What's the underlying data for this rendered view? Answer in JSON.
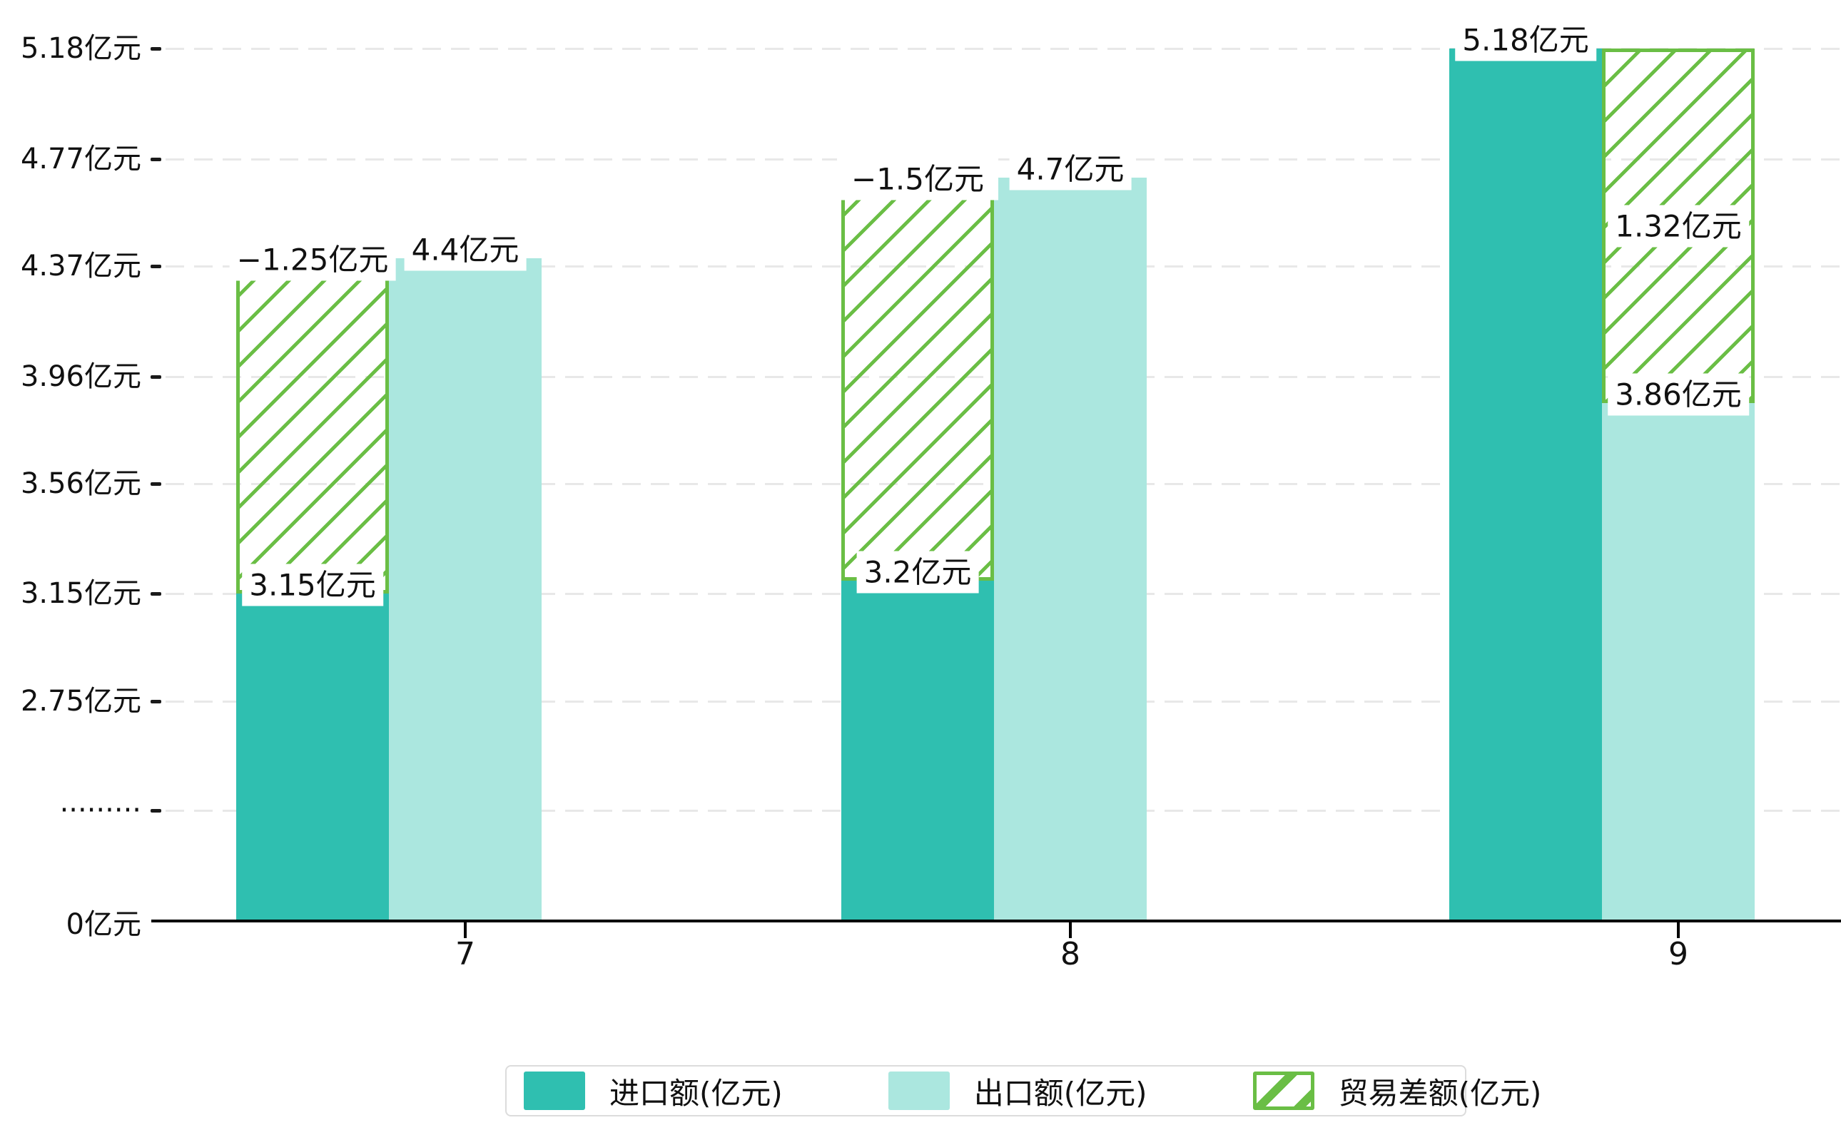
{
  "chart_data": {
    "type": "bar",
    "title": "",
    "unit": "亿元",
    "categories": [
      "7",
      "8",
      "9"
    ],
    "series": [
      {
        "name": "进口额(亿元)",
        "style": "solid",
        "color": "#2fbfb0",
        "values": [
          3.15,
          3.2,
          5.18
        ],
        "data_labels": [
          "3.15亿元",
          "3.2亿元",
          "5.18亿元"
        ]
      },
      {
        "name": "出口额(亿元)",
        "style": "solid",
        "color": "#abe7df",
        "values": [
          4.4,
          4.7,
          3.86
        ],
        "data_labels": [
          "4.4亿元",
          "4.7亿元",
          "3.86亿元"
        ]
      },
      {
        "name": "贸易差额(亿元)",
        "style": "hatched",
        "color": "#6abe45",
        "values": [
          -1.25,
          -1.5,
          1.32
        ],
        "data_labels": [
          "−1.25亿元",
          "−1.5亿元",
          "1.32亿元"
        ]
      }
    ],
    "y_axis": {
      "tick_labels": [
        "5.18亿元",
        "4.77亿元",
        "4.37亿元",
        "3.96亿元",
        "3.56亿元",
        "3.15亿元",
        "2.75亿元",
        "·········",
        "0亿元"
      ],
      "tick_values": [
        5.18,
        4.77,
        4.37,
        3.96,
        3.56,
        3.15,
        2.75,
        null,
        0
      ],
      "axis_break_marker": "·········",
      "ylim": [
        0,
        5.18
      ]
    },
    "x_axis": {
      "tick_labels": [
        "7",
        "8",
        "9"
      ]
    },
    "legend": {
      "position": "bottom",
      "items": [
        "进口额(亿元)",
        "出口额(亿元)",
        "贸易差额(亿元)"
      ]
    },
    "grid": true,
    "colors": {
      "import": "#2fbfb0",
      "export": "#abe7df",
      "difference": "#6abe45",
      "grid_line": "#e8e8e8",
      "axis_line": "#000000",
      "text": "#111111",
      "label_background": "#ffffff",
      "legend_border": "#dcdcdc"
    }
  }
}
